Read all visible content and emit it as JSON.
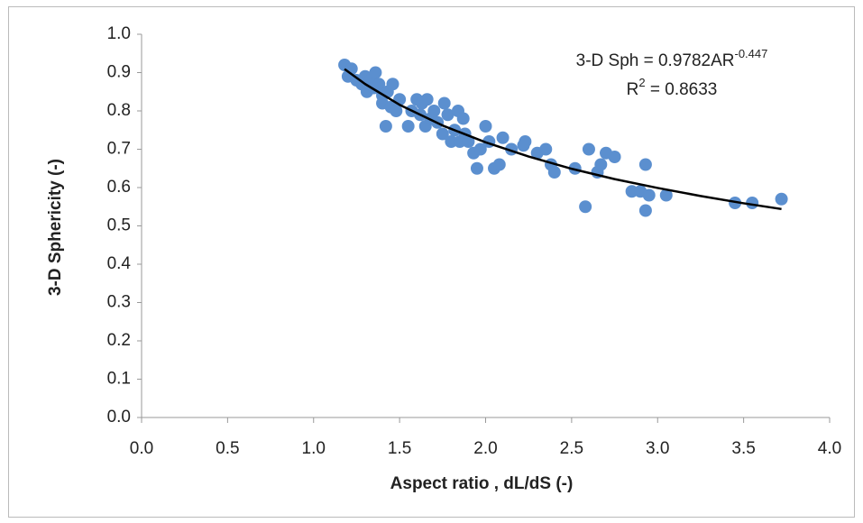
{
  "chart_data": {
    "type": "scatter",
    "x_label": "Aspect ratio , dL/dS (-)",
    "y_label": "3-D Sphericity (-)",
    "xlim": [
      0,
      4
    ],
    "ylim": [
      0,
      1
    ],
    "xticks": [
      {
        "value": 0,
        "label": "0.0"
      },
      {
        "value": 0.5,
        "label": "0.5"
      },
      {
        "value": 1,
        "label": "1.0"
      },
      {
        "value": 1.5,
        "label": "1.5"
      },
      {
        "value": 2,
        "label": "2.0"
      },
      {
        "value": 2.5,
        "label": "2.5"
      },
      {
        "value": 3,
        "label": "3.0"
      },
      {
        "value": 3.5,
        "label": "3.5"
      },
      {
        "value": 4,
        "label": "4.0"
      }
    ],
    "yticks": [
      {
        "value": 0,
        "label": "0.0"
      },
      0.1,
      0.2,
      0.3,
      0.4,
      0.5,
      0.6,
      0.7,
      0.8,
      0.9,
      {
        "value": 1,
        "label": "1.0"
      }
    ],
    "grid": false,
    "color": "#5b8fcf",
    "x": [
      1.18,
      1.2,
      1.22,
      1.25,
      1.28,
      1.3,
      1.31,
      1.33,
      1.35,
      1.36,
      1.38,
      1.4,
      1.4,
      1.42,
      1.43,
      1.45,
      1.46,
      1.48,
      1.5,
      1.55,
      1.57,
      1.6,
      1.62,
      1.63,
      1.65,
      1.66,
      1.68,
      1.7,
      1.72,
      1.75,
      1.76,
      1.78,
      1.8,
      1.82,
      1.84,
      1.85,
      1.87,
      1.88,
      1.9,
      1.93,
      1.95,
      1.97,
      2.0,
      2.02,
      2.05,
      2.08,
      2.1,
      2.15,
      2.22,
      2.23,
      2.3,
      2.35,
      2.38,
      2.4,
      2.52,
      2.58,
      2.6,
      2.65,
      2.67,
      2.7,
      2.75,
      2.85,
      2.9,
      2.93,
      2.93,
      2.95,
      3.05,
      3.45,
      3.55,
      3.72
    ],
    "values": [
      0.92,
      0.89,
      0.91,
      0.88,
      0.87,
      0.89,
      0.85,
      0.88,
      0.86,
      0.9,
      0.87,
      0.84,
      0.82,
      0.76,
      0.85,
      0.81,
      0.87,
      0.8,
      0.83,
      0.76,
      0.8,
      0.83,
      0.79,
      0.82,
      0.76,
      0.83,
      0.78,
      0.8,
      0.77,
      0.74,
      0.82,
      0.79,
      0.72,
      0.75,
      0.8,
      0.72,
      0.78,
      0.74,
      0.72,
      0.69,
      0.65,
      0.7,
      0.76,
      0.72,
      0.65,
      0.66,
      0.73,
      0.7,
      0.71,
      0.72,
      0.69,
      0.7,
      0.66,
      0.64,
      0.65,
      0.55,
      0.7,
      0.64,
      0.66,
      0.69,
      0.68,
      0.59,
      0.59,
      0.66,
      0.54,
      0.58,
      0.58,
      0.56,
      0.56,
      0.57
    ],
    "trendline": {
      "color": "#000000",
      "x": [
        1.18,
        1.3,
        1.5,
        1.75,
        2.0,
        2.25,
        2.5,
        2.75,
        3.0,
        3.25,
        3.5,
        3.72
      ],
      "values": [
        0.909,
        0.87,
        0.816,
        0.762,
        0.718,
        0.681,
        0.649,
        0.622,
        0.599,
        0.578,
        0.559,
        0.544
      ]
    },
    "annotation": {
      "equation": "3-D Sph = 0.9782AR",
      "equation_exponent": "-0.447",
      "r2_base": "R",
      "r2_exponent": "2",
      "r2_rest": " = 0.8633"
    }
  }
}
